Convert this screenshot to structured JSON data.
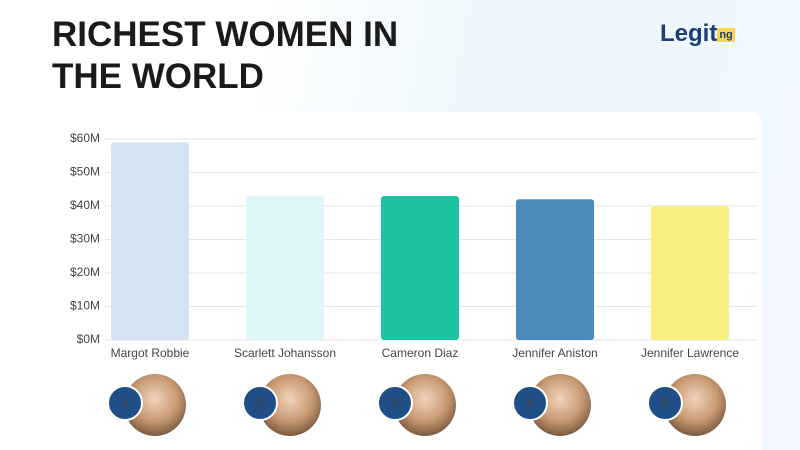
{
  "chart_data": {
    "type": "bar",
    "title": "RICHEST WOMEN IN THE WORLD",
    "logo": "Legit",
    "logo_suffix": "ng",
    "categories": [
      "Margot Robbie",
      "Scarlett Johansson",
      "Cameron Diaz",
      "Jennifer Aniston",
      "Jennifer Lawrence"
    ],
    "values": [
      59,
      43,
      43,
      42,
      40
    ],
    "colors": [
      "#d4e3f1",
      "#dff7fa",
      "#1ec2a1",
      "#4b8bbb",
      "#f8ef80"
    ],
    "ranks": [
      "1",
      "2",
      "3",
      "4",
      "5"
    ],
    "ylim": [
      0,
      60
    ],
    "yticks": [
      {
        "value": 0,
        "label": "$0M"
      },
      {
        "value": 10,
        "label": "$10M"
      },
      {
        "value": 20,
        "label": "$20M"
      },
      {
        "value": 30,
        "label": "$30M"
      },
      {
        "value": 40,
        "label": "$40M"
      },
      {
        "value": 50,
        "label": "$50M"
      },
      {
        "value": 60,
        "label": "$60M"
      }
    ],
    "grid": true
  }
}
